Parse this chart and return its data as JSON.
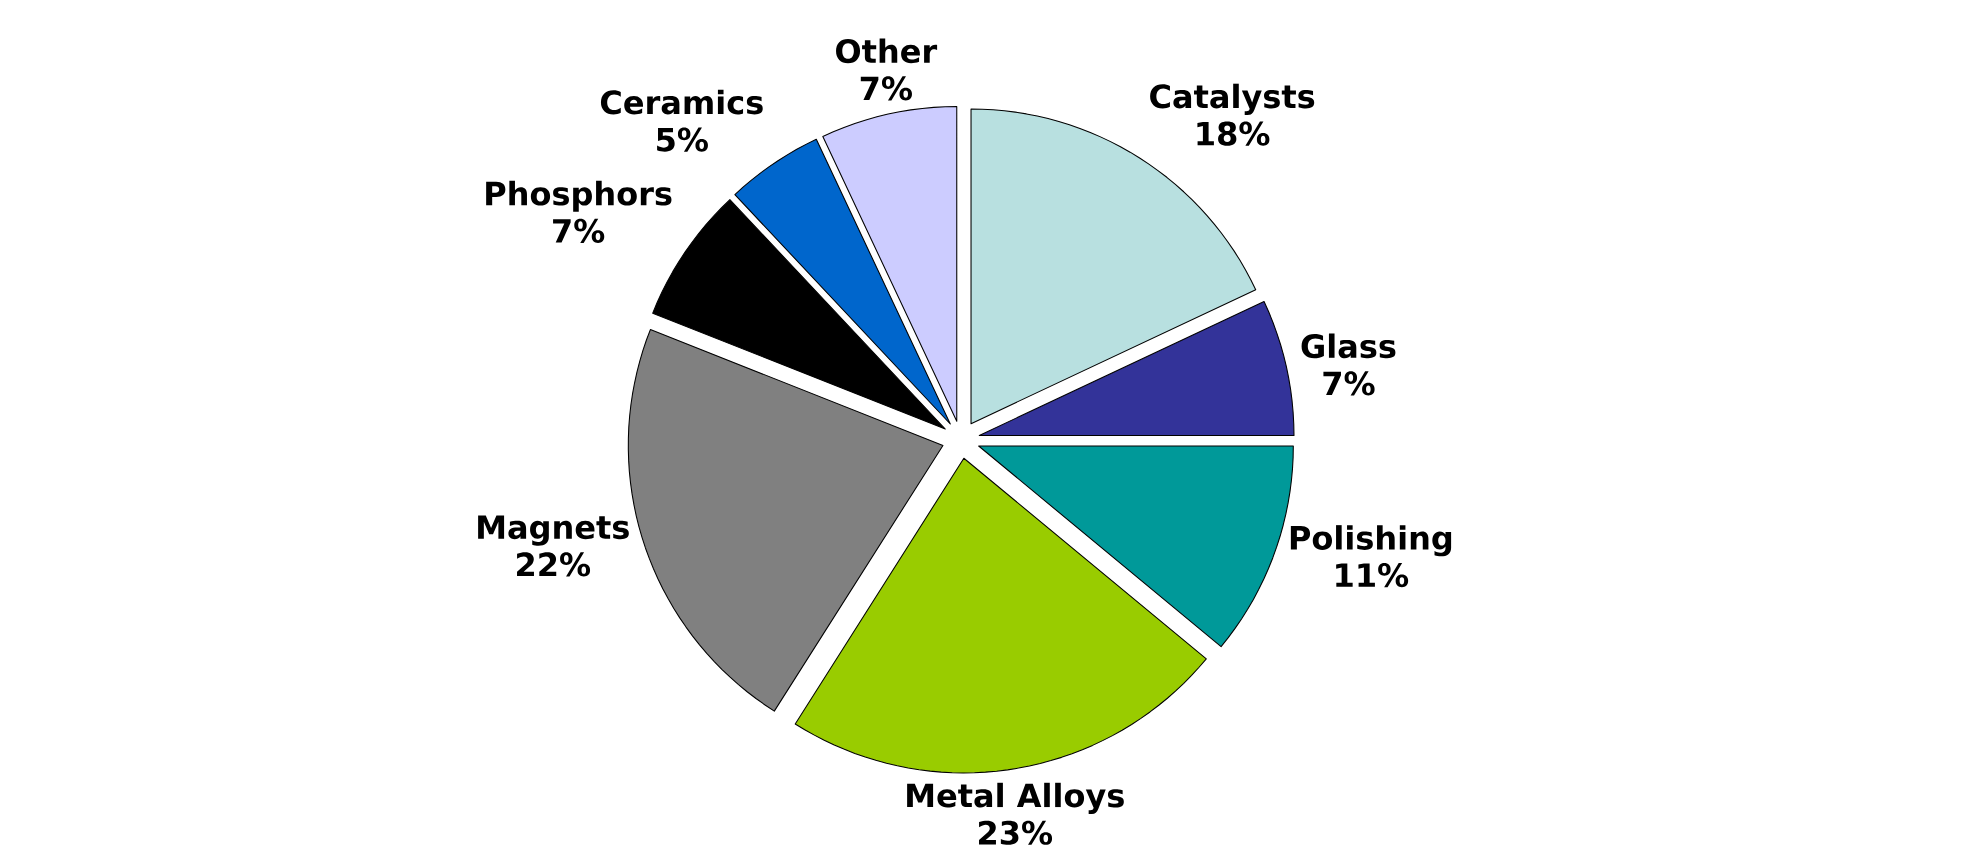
{
  "chart_data": {
    "type": "pie",
    "categories": [
      "Catalysts",
      "Glass",
      "Polishing",
      "Metal Alloys",
      "Magnets",
      "Phosphors",
      "Ceramics",
      "Other"
    ],
    "values": [
      18,
      7,
      11,
      23,
      22,
      7,
      5,
      7
    ],
    "value_labels": [
      "18%",
      "7%",
      "11%",
      "23%",
      "22%",
      "7%",
      "5%",
      "7%"
    ],
    "colors": [
      "#b8e0e0",
      "#333399",
      "#009999",
      "#99cc00",
      "#808080",
      "#000000",
      "#0066cc",
      "#ccccff"
    ]
  }
}
